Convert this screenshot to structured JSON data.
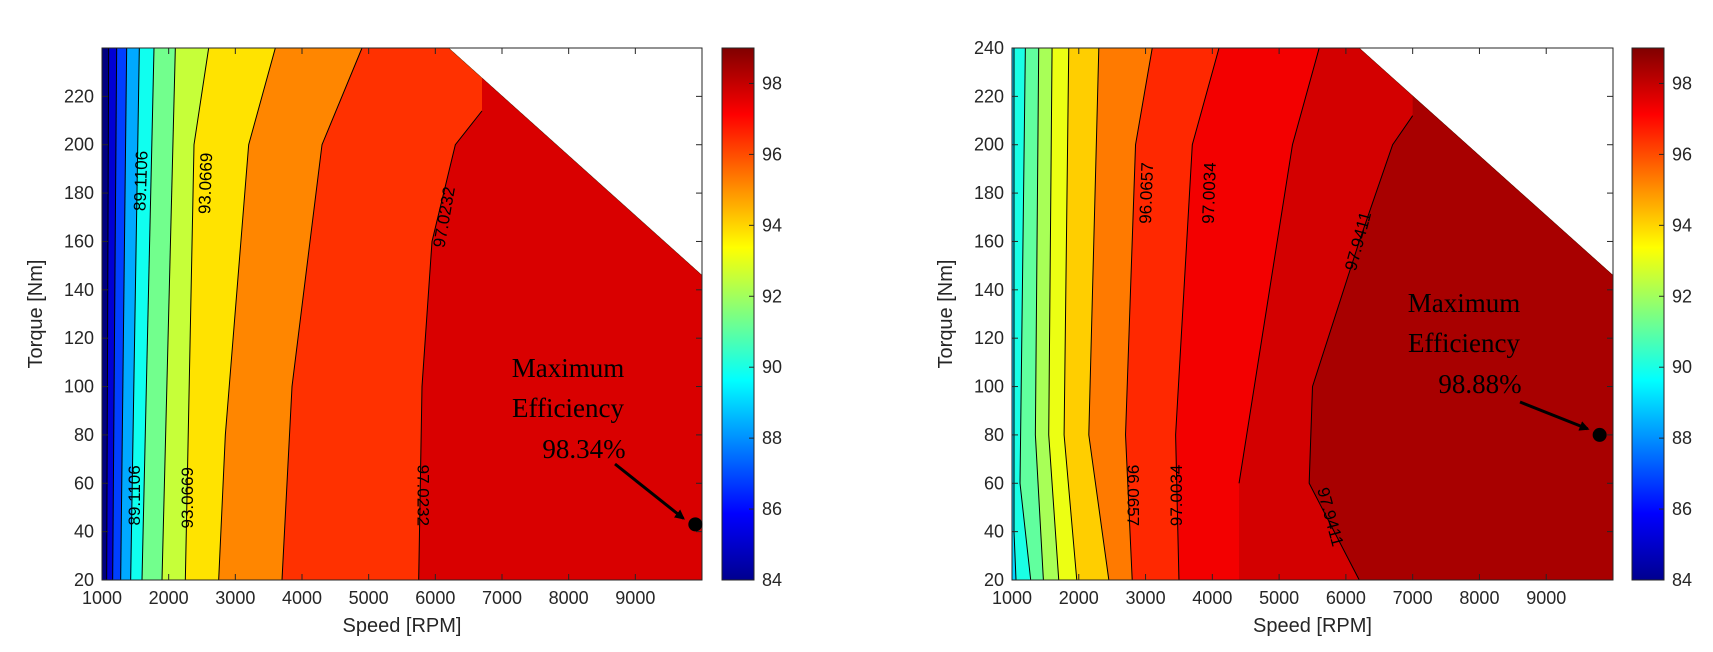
{
  "chart_data": [
    {
      "type": "contour",
      "title": "",
      "xlabel": "Speed [RPM]",
      "ylabel": "Torque [Nm]",
      "xlim": [
        1000,
        10000
      ],
      "ylim": [
        20,
        240
      ],
      "xticks": [
        1000,
        2000,
        3000,
        4000,
        5000,
        6000,
        7000,
        8000,
        9000
      ],
      "yticks": [
        20,
        40,
        60,
        80,
        100,
        120,
        140,
        160,
        180,
        200,
        220
      ],
      "colorbar": {
        "range": [
          84,
          99
        ],
        "ticks": [
          84,
          86,
          88,
          90,
          92,
          94,
          96,
          98
        ]
      },
      "boundary": [
        [
          1000,
          240
        ],
        [
          6200,
          240
        ],
        [
          10000,
          146
        ],
        [
          10000,
          20
        ]
      ],
      "level_boundaries": [
        {
          "level": 84.5,
          "points": [
            [
              1100,
              240
            ],
            [
              1070,
              20
            ]
          ]
        },
        {
          "level": 86.0,
          "points": [
            [
              1220,
              240
            ],
            [
              1160,
              20
            ]
          ]
        },
        {
          "level": 87.6,
          "points": [
            [
              1370,
              240
            ],
            [
              1280,
              20
            ]
          ]
        },
        {
          "level": 89.1106,
          "points": [
            [
              1560,
              240
            ],
            [
              1430,
              20
            ]
          ]
        },
        {
          "level": 90.6,
          "points": [
            [
              1780,
              240
            ],
            [
              1600,
              20
            ]
          ]
        },
        {
          "level": 92.0,
          "points": [
            [
              2100,
              240
            ],
            [
              1900,
              20
            ]
          ]
        },
        {
          "level": 93.0669,
          "points": [
            [
              2600,
              240
            ],
            [
              2380,
              200
            ],
            [
              2250,
              20
            ]
          ]
        },
        {
          "level": 94.5,
          "points": [
            [
              3600,
              240
            ],
            [
              3200,
              200
            ],
            [
              2850,
              80
            ],
            [
              2750,
              20
            ]
          ]
        },
        {
          "level": 95.8,
          "points": [
            [
              4900,
              240
            ],
            [
              4300,
              200
            ],
            [
              3850,
              100
            ],
            [
              3700,
              20
            ]
          ]
        },
        {
          "level": 97.0232,
          "points": [
            [
              6700,
              214
            ],
            [
              6300,
              200
            ],
            [
              5950,
              160
            ],
            [
              5800,
              100
            ],
            [
              5750,
              20
            ]
          ]
        }
      ],
      "contour_labels": [
        {
          "text": "89.1106",
          "x": 1600,
          "y": 185,
          "angle": -88
        },
        {
          "text": "93.0669",
          "x": 2570,
          "y": 184,
          "angle": -88
        },
        {
          "text": "97.0232",
          "x": 6150,
          "y": 170,
          "angle": -80
        },
        {
          "text": "89.1106",
          "x": 1500,
          "y": 55,
          "angle": -90
        },
        {
          "text": "93.0669",
          "x": 2300,
          "y": 54,
          "angle": -90
        },
        {
          "text": "97.0232",
          "x": 5800,
          "y": 55,
          "angle": 90
        }
      ],
      "annotation": {
        "lines": [
          "Maximum",
          "Efficiency",
          "98.34%"
        ],
        "point": [
          9900,
          43
        ],
        "max_efficiency": 98.34
      }
    },
    {
      "type": "contour",
      "title": "",
      "xlabel": "Speed [RPM]",
      "ylabel": "Torque [Nm]",
      "xlim": [
        1000,
        10000
      ],
      "ylim": [
        20,
        240
      ],
      "xticks": [
        1000,
        2000,
        3000,
        4000,
        5000,
        6000,
        7000,
        8000,
        9000
      ],
      "yticks": [
        20,
        40,
        60,
        80,
        100,
        120,
        140,
        160,
        180,
        200,
        220,
        240
      ],
      "colorbar": {
        "range": [
          84,
          99
        ],
        "ticks": [
          84,
          86,
          88,
          90,
          92,
          94,
          96,
          98
        ]
      },
      "boundary": [
        [
          1000,
          240
        ],
        [
          6200,
          240
        ],
        [
          10000,
          146
        ],
        [
          10000,
          20
        ]
      ],
      "level_boundaries": [
        {
          "level": 89.5,
          "points": [
            [
              1030,
              240
            ],
            [
              1030,
              40
            ],
            [
              1060,
              20
            ]
          ]
        },
        {
          "level": 90.5,
          "points": [
            [
              1200,
              240
            ],
            [
              1120,
              60
            ],
            [
              1280,
              20
            ]
          ]
        },
        {
          "level": 91.6,
          "points": [
            [
              1400,
              240
            ],
            [
              1350,
              80
            ],
            [
              1470,
              20
            ]
          ]
        },
        {
          "level": 92.6,
          "points": [
            [
              1600,
              240
            ],
            [
              1550,
              80
            ],
            [
              1700,
              20
            ]
          ]
        },
        {
          "level": 93.6,
          "points": [
            [
              1850,
              240
            ],
            [
              1780,
              80
            ],
            [
              1970,
              20
            ]
          ]
        },
        {
          "level": 94.6,
          "points": [
            [
              2300,
              240
            ],
            [
              2150,
              80
            ],
            [
              2450,
              20
            ]
          ]
        },
        {
          "level": 96.0657,
          "points": [
            [
              3100,
              240
            ],
            [
              2850,
              200
            ],
            [
              2700,
              80
            ],
            [
              2800,
              20
            ]
          ]
        },
        {
          "level": 97.0034,
          "points": [
            [
              4100,
              240
            ],
            [
              3700,
              200
            ],
            [
              3450,
              80
            ],
            [
              3500,
              20
            ]
          ]
        },
        {
          "level": 97.6,
          "points": [
            [
              5600,
              240
            ],
            [
              5200,
              200
            ],
            [
              4400,
              60
            ]
          ]
        },
        {
          "level": 97.9411,
          "points": [
            [
              7000,
              212
            ],
            [
              6700,
              200
            ],
            [
              6200,
              160
            ],
            [
              5500,
              100
            ],
            [
              5450,
              60
            ],
            [
              6200,
              20
            ]
          ]
        }
      ],
      "contour_labels": [
        {
          "text": "96.0657",
          "x": 3030,
          "y": 180,
          "angle": -88
        },
        {
          "text": "97.0034",
          "x": 3970,
          "y": 180,
          "angle": -88
        },
        {
          "text": "97.9411",
          "x": 6200,
          "y": 160,
          "angle": -75
        },
        {
          "text": "96.0657",
          "x": 2800,
          "y": 55,
          "angle": 90
        },
        {
          "text": "97.0034",
          "x": 3480,
          "y": 55,
          "angle": -90
        },
        {
          "text": "97.9411",
          "x": 5750,
          "y": 46,
          "angle": 75
        }
      ],
      "annotation": {
        "lines": [
          "Maximum",
          "Efficiency",
          "98.88%"
        ],
        "point": [
          9800,
          80
        ],
        "max_efficiency": 98.88
      }
    }
  ]
}
